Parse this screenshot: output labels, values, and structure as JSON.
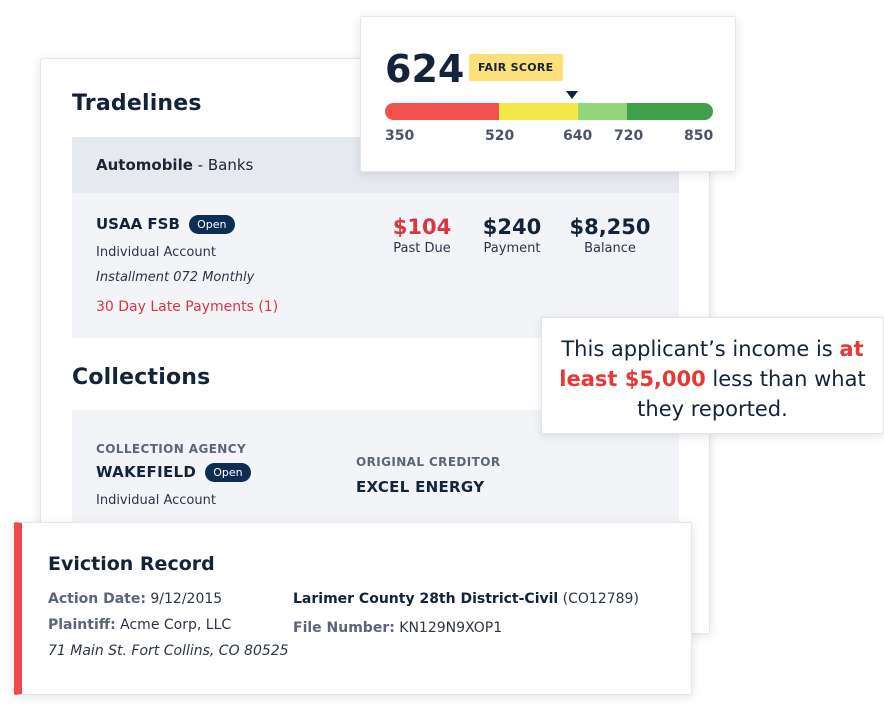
{
  "tradelines": {
    "title": "Tradelines",
    "category_bold": "Automobile",
    "category_rest": " - Banks",
    "account": {
      "name": "USAA FSB",
      "status": "Open",
      "type": "Individual Account",
      "terms": "Installment 072 Monthly",
      "late": "30 Day Late Payments (1)",
      "past_due_value": "$104",
      "past_due_label": "Past Due",
      "payment_value": "$240",
      "payment_label": "Payment",
      "balance_value": "$8,250",
      "balance_label": "Balance"
    }
  },
  "collections": {
    "title": "Collections",
    "agency_label": "COLLECTION AGENCY",
    "agency_name": "WAKEFIELD",
    "status": "Open",
    "type": "Individual Account",
    "creditor_label": "ORIGINAL CREDITOR",
    "creditor_name": "EXCEL ENERGY"
  },
  "score": {
    "value": "624",
    "badge": "FAIR SCORE",
    "ticks": [
      "350",
      "520",
      "640",
      "720",
      "850"
    ],
    "colors": [
      "#f2524e",
      "#f3ea4a",
      "#94d77a",
      "#3fa049"
    ]
  },
  "income_note": {
    "before": "This applicant’s income is ",
    "highlight": "at least $5,000",
    "after": " less than what they reported."
  },
  "eviction": {
    "title": "Eviction Record",
    "action_date_label": "Action Date:",
    "action_date": " 9/12/2015",
    "plaintiff_label": "Plaintiff:",
    "plaintiff": " Acme Corp, LLC",
    "address": "71 Main St. Fort Collins, CO 80525",
    "court": "Larimer County 28th District-Civil",
    "court_code": " (CO12789)",
    "file_label": "File Number:",
    "file_number": " KN129N9XOP1"
  }
}
